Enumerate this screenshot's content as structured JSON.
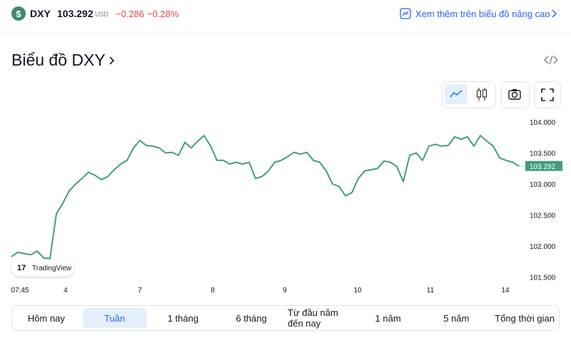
{
  "header": {
    "symbol": "DXY",
    "price": "103.292",
    "currency": "USD",
    "change": "−0.286",
    "change_pct": "−0.28%",
    "link": "Xem thêm trên biểu đồ nâng cao"
  },
  "title": "Biểu đồ DXY",
  "logo": "TradingView",
  "tabs": [
    "Hôm nay",
    "Tuần",
    "1 tháng",
    "6 tháng",
    "Từ đầu năm đến nay",
    "1 năm",
    "5 năm",
    "Tổng thời gian"
  ],
  "active_tab": 1,
  "chart_data": {
    "type": "line",
    "color": "#419e7c",
    "values": [
      101.83,
      101.9,
      101.88,
      101.86,
      101.92,
      101.81,
      101.8,
      102.52,
      102.69,
      102.89,
      103.0,
      103.09,
      103.19,
      103.14,
      103.07,
      103.12,
      103.23,
      103.32,
      103.38,
      103.58,
      103.7,
      103.62,
      103.61,
      103.58,
      103.5,
      103.51,
      103.46,
      103.67,
      103.58,
      103.69,
      103.78,
      103.61,
      103.38,
      103.38,
      103.32,
      103.35,
      103.32,
      103.35,
      103.09,
      103.12,
      103.21,
      103.35,
      103.38,
      103.44,
      103.51,
      103.48,
      103.51,
      103.38,
      103.35,
      103.21,
      103.0,
      102.96,
      102.81,
      102.86,
      103.09,
      103.21,
      103.23,
      103.25,
      103.37,
      103.35,
      103.28,
      103.04,
      103.46,
      103.5,
      103.38,
      103.61,
      103.64,
      103.61,
      103.62,
      103.76,
      103.72,
      103.76,
      103.61,
      103.78,
      103.69,
      103.61,
      103.42,
      103.38,
      103.35,
      103.29
    ],
    "xlim": [
      0,
      79
    ],
    "xticks": [
      {
        "value": 1.33,
        "label": "07:45"
      },
      {
        "value": 8.44,
        "label": "4"
      },
      {
        "value": 20,
        "label": "7"
      },
      {
        "value": 31.33,
        "label": "8"
      },
      {
        "value": 42.56,
        "label": "9"
      },
      {
        "value": 53.89,
        "label": "10"
      },
      {
        "value": 65.22,
        "label": "11"
      },
      {
        "value": 76.89,
        "label": "14"
      }
    ],
    "ylim": [
      101.37,
      104.24
    ],
    "yticks": [
      {
        "value": 101.5,
        "label": "101.500"
      },
      {
        "value": 102,
        "label": "102.000"
      },
      {
        "value": 102.5,
        "label": "102.500"
      },
      {
        "value": 103,
        "label": "103.000"
      },
      {
        "value": 103.5,
        "label": "103.500"
      },
      {
        "value": 104,
        "label": "104.000"
      }
    ]
  }
}
